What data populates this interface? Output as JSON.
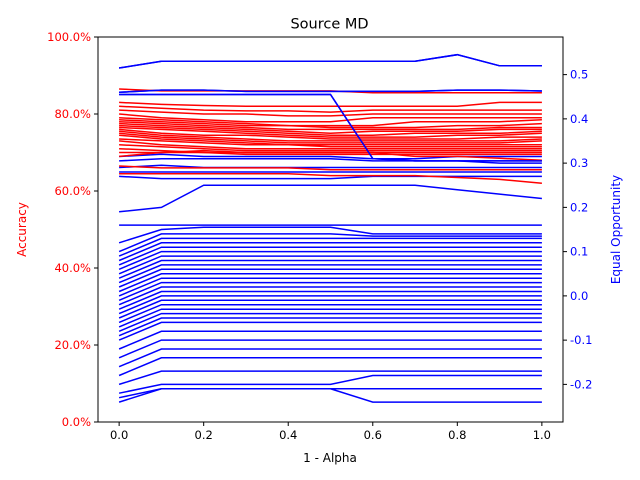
{
  "chart_data": {
    "type": "line",
    "title": "Source MD",
    "xlabel": "1 - Alpha",
    "ylabel_left": "Accuracy",
    "ylabel_right": "Equal Opportunity",
    "x": [
      0.0,
      0.1,
      0.2,
      0.3,
      0.4,
      0.5,
      0.6,
      0.7,
      0.8,
      0.9,
      1.0
    ],
    "xlim": [
      -0.05,
      1.05
    ],
    "ylim_left": [
      0.0,
      1.0
    ],
    "ylim_right": [
      -0.285,
      0.585
    ],
    "x_ticks": [
      "0.0",
      "0.2",
      "0.4",
      "0.6",
      "0.8",
      "1.0"
    ],
    "left_ticks": [
      "0.0%",
      "20.0%",
      "40.0%",
      "60.0%",
      "80.0%",
      "100.0%"
    ],
    "right_ticks": [
      "-0.2",
      "-0.1",
      "0.0",
      "0.1",
      "0.2",
      "0.3",
      "0.4",
      "0.5"
    ],
    "grid": false,
    "colors": {
      "left": "#ff0000",
      "right": "#0000ff",
      "axis": "#000000"
    },
    "accuracy_series": [
      [
        0.865,
        0.86,
        0.86,
        0.86,
        0.86,
        0.86,
        0.855,
        0.855,
        0.855,
        0.855,
        0.855
      ],
      [
        0.83,
        0.825,
        0.822,
        0.82,
        0.82,
        0.82,
        0.82,
        0.82,
        0.82,
        0.83,
        0.83
      ],
      [
        0.82,
        0.815,
        0.81,
        0.808,
        0.808,
        0.805,
        0.81,
        0.81,
        0.81,
        0.81,
        0.81
      ],
      [
        0.81,
        0.805,
        0.8,
        0.8,
        0.795,
        0.795,
        0.8,
        0.8,
        0.8,
        0.8,
        0.8
      ],
      [
        0.8,
        0.79,
        0.785,
        0.78,
        0.78,
        0.78,
        0.79,
        0.79,
        0.79,
        0.79,
        0.79
      ],
      [
        0.79,
        0.785,
        0.78,
        0.775,
        0.77,
        0.77,
        0.77,
        0.78,
        0.78,
        0.78,
        0.785
      ],
      [
        0.785,
        0.78,
        0.775,
        0.77,
        0.77,
        0.765,
        0.765,
        0.765,
        0.77,
        0.77,
        0.775
      ],
      [
        0.78,
        0.775,
        0.77,
        0.765,
        0.76,
        0.76,
        0.76,
        0.76,
        0.76,
        0.765,
        0.765
      ],
      [
        0.775,
        0.77,
        0.765,
        0.76,
        0.755,
        0.75,
        0.755,
        0.755,
        0.755,
        0.76,
        0.76
      ],
      [
        0.77,
        0.765,
        0.76,
        0.755,
        0.75,
        0.745,
        0.745,
        0.75,
        0.75,
        0.75,
        0.755
      ],
      [
        0.765,
        0.76,
        0.755,
        0.75,
        0.745,
        0.74,
        0.74,
        0.74,
        0.745,
        0.745,
        0.75
      ],
      [
        0.76,
        0.75,
        0.745,
        0.745,
        0.74,
        0.735,
        0.735,
        0.735,
        0.735,
        0.74,
        0.74
      ],
      [
        0.755,
        0.745,
        0.74,
        0.735,
        0.73,
        0.73,
        0.73,
        0.73,
        0.73,
        0.73,
        0.735
      ],
      [
        0.75,
        0.74,
        0.735,
        0.73,
        0.725,
        0.725,
        0.725,
        0.725,
        0.725,
        0.725,
        0.73
      ],
      [
        0.745,
        0.735,
        0.73,
        0.725,
        0.72,
        0.72,
        0.72,
        0.72,
        0.72,
        0.72,
        0.72
      ],
      [
        0.735,
        0.73,
        0.725,
        0.72,
        0.72,
        0.715,
        0.715,
        0.715,
        0.715,
        0.715,
        0.715
      ],
      [
        0.73,
        0.72,
        0.715,
        0.71,
        0.71,
        0.71,
        0.71,
        0.71,
        0.71,
        0.71,
        0.71
      ],
      [
        0.72,
        0.715,
        0.71,
        0.705,
        0.705,
        0.705,
        0.705,
        0.705,
        0.705,
        0.705,
        0.705
      ],
      [
        0.71,
        0.705,
        0.7,
        0.7,
        0.7,
        0.7,
        0.7,
        0.7,
        0.7,
        0.7,
        0.7
      ],
      [
        0.7,
        0.7,
        0.7,
        0.695,
        0.695,
        0.695,
        0.695,
        0.695,
        0.695,
        0.695,
        0.695
      ],
      [
        0.69,
        0.7,
        0.705,
        0.7,
        0.7,
        0.7,
        0.7,
        0.69,
        0.69,
        0.685,
        0.68
      ],
      [
        0.665,
        0.66,
        0.66,
        0.66,
        0.66,
        0.655,
        0.655,
        0.655,
        0.655,
        0.655,
        0.655
      ],
      [
        0.645,
        0.645,
        0.645,
        0.645,
        0.645,
        0.64,
        0.64,
        0.64,
        0.635,
        0.63,
        0.62
      ]
    ],
    "equal_opportunity_series": [
      [
        0.515,
        0.53,
        0.53,
        0.53,
        0.53,
        0.53,
        0.53,
        0.53,
        0.545,
        0.52,
        0.52
      ],
      [
        0.46,
        0.465,
        0.465,
        0.462,
        0.462,
        0.462,
        0.462,
        0.462,
        0.465,
        0.465,
        0.463
      ],
      [
        0.455,
        0.455,
        0.455,
        0.455,
        0.455,
        0.455,
        0.31,
        0.305,
        0.305,
        0.305,
        0.305
      ],
      [
        0.315,
        0.32,
        0.315,
        0.315,
        0.315,
        0.315,
        0.31,
        0.31,
        0.315,
        0.315,
        0.315
      ],
      [
        0.305,
        0.31,
        0.31,
        0.31,
        0.31,
        0.31,
        0.305,
        0.305,
        0.305,
        0.3,
        0.3
      ],
      [
        0.29,
        0.295,
        0.29,
        0.29,
        0.29,
        0.29,
        0.29,
        0.29,
        0.29,
        0.29,
        0.29
      ],
      [
        0.28,
        0.28,
        0.28,
        0.28,
        0.28,
        0.28,
        0.28,
        0.28,
        0.28,
        0.28,
        0.28
      ],
      [
        0.27,
        0.265,
        0.265,
        0.265,
        0.265,
        0.265,
        0.27,
        0.27,
        0.27,
        0.27,
        0.27
      ],
      [
        0.19,
        0.2,
        0.25,
        0.25,
        0.25,
        0.25,
        0.25,
        0.25,
        0.24,
        0.23,
        0.22
      ],
      [
        0.16,
        0.16,
        0.16,
        0.16,
        0.16,
        0.16,
        0.16,
        0.16,
        0.16,
        0.16,
        0.16
      ],
      [
        0.12,
        0.15,
        0.155,
        0.155,
        0.155,
        0.155,
        0.14,
        0.14,
        0.14,
        0.14,
        0.14
      ],
      [
        0.1,
        0.14,
        0.14,
        0.14,
        0.14,
        0.14,
        0.135,
        0.135,
        0.135,
        0.135,
        0.135
      ],
      [
        0.09,
        0.13,
        0.13,
        0.13,
        0.13,
        0.13,
        0.13,
        0.13,
        0.13,
        0.13,
        0.13
      ],
      [
        0.08,
        0.12,
        0.12,
        0.12,
        0.12,
        0.12,
        0.12,
        0.12,
        0.12,
        0.12,
        0.12
      ],
      [
        0.07,
        0.11,
        0.11,
        0.11,
        0.11,
        0.11,
        0.11,
        0.11,
        0.11,
        0.11,
        0.11
      ],
      [
        0.06,
        0.1,
        0.1,
        0.1,
        0.1,
        0.1,
        0.1,
        0.1,
        0.1,
        0.1,
        0.1
      ],
      [
        0.05,
        0.09,
        0.09,
        0.09,
        0.09,
        0.09,
        0.09,
        0.09,
        0.09,
        0.09,
        0.09
      ],
      [
        0.04,
        0.08,
        0.08,
        0.08,
        0.08,
        0.08,
        0.08,
        0.08,
        0.08,
        0.08,
        0.08
      ],
      [
        0.03,
        0.07,
        0.07,
        0.07,
        0.07,
        0.07,
        0.07,
        0.07,
        0.07,
        0.07,
        0.07
      ],
      [
        0.02,
        0.06,
        0.06,
        0.06,
        0.06,
        0.06,
        0.06,
        0.06,
        0.06,
        0.06,
        0.06
      ],
      [
        0.01,
        0.05,
        0.05,
        0.05,
        0.05,
        0.05,
        0.05,
        0.05,
        0.05,
        0.05,
        0.05
      ],
      [
        0.0,
        0.04,
        0.04,
        0.04,
        0.04,
        0.04,
        0.04,
        0.04,
        0.04,
        0.04,
        0.04
      ],
      [
        -0.01,
        0.03,
        0.03,
        0.03,
        0.03,
        0.03,
        0.03,
        0.03,
        0.03,
        0.03,
        0.03
      ],
      [
        -0.02,
        0.02,
        0.02,
        0.02,
        0.02,
        0.02,
        0.02,
        0.02,
        0.02,
        0.02,
        0.02
      ],
      [
        -0.03,
        0.01,
        0.01,
        0.01,
        0.01,
        0.01,
        0.01,
        0.01,
        0.01,
        0.01,
        0.01
      ],
      [
        -0.04,
        0.0,
        0.0,
        0.0,
        0.0,
        0.0,
        0.0,
        0.0,
        0.0,
        0.0,
        0.0
      ],
      [
        -0.05,
        -0.01,
        -0.01,
        -0.01,
        -0.01,
        -0.01,
        -0.01,
        -0.01,
        -0.01,
        -0.01,
        -0.01
      ],
      [
        -0.06,
        -0.02,
        -0.02,
        -0.02,
        -0.02,
        -0.02,
        -0.02,
        -0.02,
        -0.02,
        -0.02,
        -0.02
      ],
      [
        -0.07,
        -0.03,
        -0.03,
        -0.03,
        -0.03,
        -0.03,
        -0.03,
        -0.03,
        -0.03,
        -0.03,
        -0.03
      ],
      [
        -0.08,
        -0.04,
        -0.04,
        -0.04,
        -0.04,
        -0.04,
        -0.04,
        -0.04,
        -0.04,
        -0.04,
        -0.04
      ],
      [
        -0.09,
        -0.05,
        -0.05,
        -0.05,
        -0.05,
        -0.05,
        -0.05,
        -0.05,
        -0.05,
        -0.05,
        -0.05
      ],
      [
        -0.1,
        -0.06,
        -0.06,
        -0.06,
        -0.06,
        -0.06,
        -0.06,
        -0.06,
        -0.06,
        -0.06,
        -0.06
      ],
      [
        -0.12,
        -0.08,
        -0.08,
        -0.08,
        -0.08,
        -0.08,
        -0.08,
        -0.08,
        -0.08,
        -0.08,
        -0.08
      ],
      [
        -0.14,
        -0.1,
        -0.1,
        -0.1,
        -0.1,
        -0.1,
        -0.1,
        -0.1,
        -0.1,
        -0.1,
        -0.1
      ],
      [
        -0.16,
        -0.12,
        -0.12,
        -0.12,
        -0.12,
        -0.12,
        -0.12,
        -0.12,
        -0.12,
        -0.12,
        -0.12
      ],
      [
        -0.18,
        -0.14,
        -0.14,
        -0.14,
        -0.14,
        -0.14,
        -0.14,
        -0.14,
        -0.14,
        -0.14,
        -0.14
      ],
      [
        -0.2,
        -0.17,
        -0.17,
        -0.17,
        -0.17,
        -0.17,
        -0.17,
        -0.17,
        -0.17,
        -0.17,
        -0.17
      ],
      [
        -0.22,
        -0.2,
        -0.2,
        -0.2,
        -0.2,
        -0.2,
        -0.18,
        -0.18,
        -0.18,
        -0.18,
        -0.18
      ],
      [
        -0.24,
        -0.21,
        -0.21,
        -0.21,
        -0.21,
        -0.21,
        -0.21,
        -0.21,
        -0.21,
        -0.21,
        -0.21
      ],
      [
        -0.23,
        -0.21,
        -0.21,
        -0.21,
        -0.21,
        -0.21,
        -0.24,
        -0.24,
        -0.24,
        -0.24,
        -0.24
      ]
    ]
  }
}
